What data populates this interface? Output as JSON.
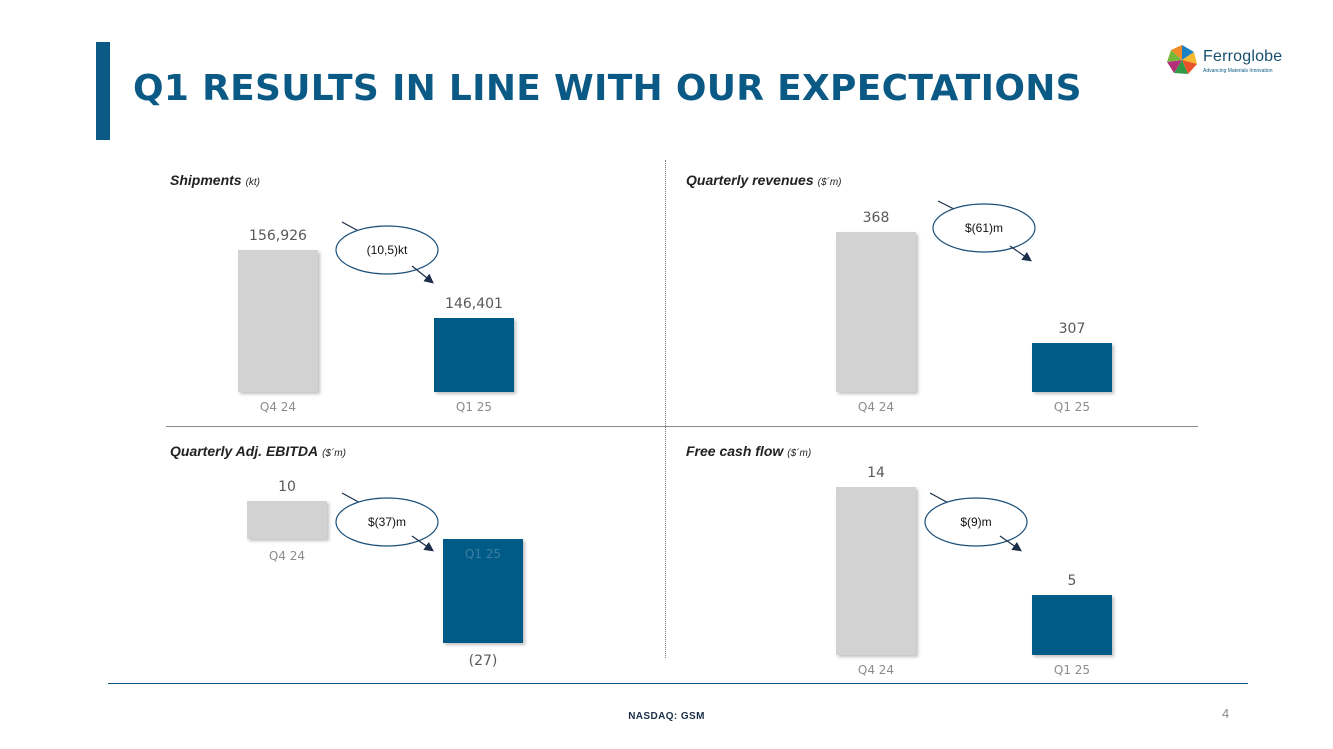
{
  "header": {
    "title": "Q1 RESULTS IN LINE WITH OUR EXPECTATIONS"
  },
  "logo": {
    "name": "Ferroglobe",
    "tagline": "Advancing Materials Innovation"
  },
  "footer": {
    "ticker": "NASDAQ: GSM",
    "page_number": "4"
  },
  "colors": {
    "accent": "#0b5a86",
    "q1_bar": "#005b87",
    "q4_bar": "#d2d2d2"
  },
  "chart_data": [
    {
      "type": "bar",
      "title": "Shipments",
      "unit": "(kt)",
      "categories": [
        "Q4 24",
        "Q1 25"
      ],
      "values": [
        156926,
        146401
      ],
      "value_labels": [
        "156,926",
        "146,401"
      ],
      "ylim": [
        135000,
        160000
      ],
      "callout": "(10,5)kt"
    },
    {
      "type": "bar",
      "title": "Quarterly revenues",
      "unit": "($´m)",
      "categories": [
        "Q4 24",
        "Q1 25"
      ],
      "values": [
        368,
        307
      ],
      "value_labels": [
        "368",
        "307"
      ],
      "ylim": [
        280,
        375
      ],
      "callout": "$(61)m"
    },
    {
      "type": "bar",
      "title": "Quarterly Adj. EBITDA",
      "unit": "($´m)",
      "categories": [
        "Q4 24",
        "Q1 25"
      ],
      "values": [
        10,
        -27
      ],
      "value_labels": [
        "10",
        "(27)"
      ],
      "ylim": [
        -27,
        10
      ],
      "callout": "$(37)m"
    },
    {
      "type": "bar",
      "title": "Free cash flow",
      "unit": "($´m)",
      "categories": [
        "Q4 24",
        "Q1 25"
      ],
      "values": [
        14,
        5
      ],
      "value_labels": [
        "14",
        "5"
      ],
      "ylim": [
        0,
        14
      ],
      "callout": "$(9)m"
    }
  ]
}
